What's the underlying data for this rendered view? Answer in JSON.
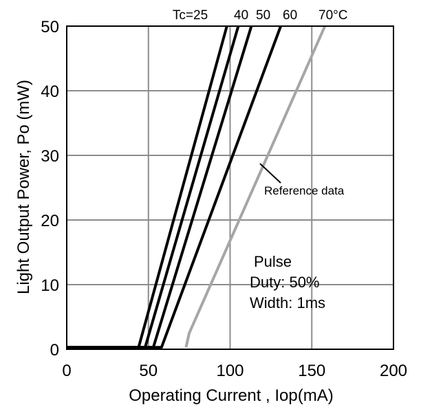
{
  "chart_data": {
    "type": "line",
    "title": "",
    "xlabel": "Operating Current , Iop(mA)",
    "ylabel": "Light Output Power, Po (mW)",
    "xlim": [
      0,
      200
    ],
    "ylim": [
      0,
      50
    ],
    "x_ticks": [
      "0",
      "50",
      "100",
      "150",
      "200"
    ],
    "y_ticks": [
      "0",
      "10",
      "20",
      "30",
      "40",
      "50"
    ],
    "grid": true,
    "series_label_prefix": "Tc=",
    "series": [
      {
        "name": "25",
        "color": "#000000",
        "points": [
          [
            0,
            0.3
          ],
          [
            44,
            0.3
          ],
          [
            98,
            50
          ]
        ]
      },
      {
        "name": "40",
        "color": "#000000",
        "points": [
          [
            0,
            0.3
          ],
          [
            48,
            0.3
          ],
          [
            105,
            50
          ]
        ]
      },
      {
        "name": "50",
        "color": "#000000",
        "points": [
          [
            0,
            0.3
          ],
          [
            53,
            0.3
          ],
          [
            113,
            50
          ]
        ]
      },
      {
        "name": "60",
        "color": "#000000",
        "points": [
          [
            0,
            0.3
          ],
          [
            58,
            0.3
          ],
          [
            131,
            50
          ]
        ]
      },
      {
        "name": "70°C",
        "color": "#a6a6a6",
        "points": [
          [
            73,
            0.3
          ],
          [
            75,
            2.5
          ],
          [
            158,
            50
          ]
        ]
      }
    ],
    "annotations": {
      "reference": "Reference data",
      "conditions": [
        "Pulse",
        "Duty: 50%",
        "Width: 1ms"
      ]
    }
  }
}
